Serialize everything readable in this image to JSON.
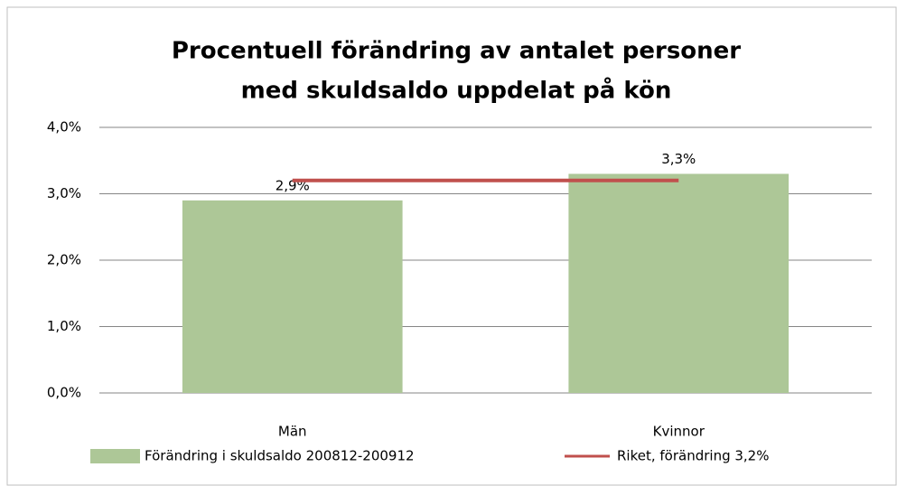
{
  "chart_data": {
    "type": "bar",
    "title": [
      "Procentuell förändring av antalet personer",
      "med skuldsaldo uppdelat på kön"
    ],
    "categories": [
      "Män",
      "Kvinnor"
    ],
    "series": [
      {
        "name": "Förändring i skuldsaldo 200812-200912",
        "color": "#adc797",
        "values": [
          2.9,
          3.3
        ],
        "value_labels": [
          "2,9%",
          "3,3%"
        ]
      },
      {
        "name": "Riket, förändring 3,2%",
        "type": "line",
        "color": "#c0504d",
        "values": [
          3.2,
          3.2
        ]
      }
    ],
    "ylim": [
      0,
      4
    ],
    "yticks": [
      {
        "value": 0,
        "label": "0,0%"
      },
      {
        "value": 1,
        "label": "1,0%"
      },
      {
        "value": 2,
        "label": "2,0%"
      },
      {
        "value": 3,
        "label": "3,0%"
      },
      {
        "value": 4,
        "label": "4,0%"
      }
    ],
    "grid": true,
    "legend": "bottom"
  }
}
